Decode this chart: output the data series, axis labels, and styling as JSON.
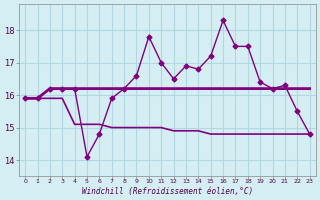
{
  "xlabel": "Windchill (Refroidissement éolien,°C)",
  "background_color": "#d4eef4",
  "line_color": "#800080",
  "grid_color": "#b0d8e0",
  "x": [
    0,
    1,
    2,
    3,
    4,
    5,
    6,
    7,
    8,
    9,
    10,
    11,
    12,
    13,
    14,
    15,
    16,
    17,
    18,
    19,
    20,
    21,
    22,
    23
  ],
  "y_main": [
    15.9,
    15.9,
    16.2,
    16.2,
    16.2,
    14.1,
    14.8,
    15.9,
    16.2,
    16.6,
    17.8,
    17.0,
    16.5,
    16.9,
    16.8,
    17.2,
    18.3,
    17.5,
    17.5,
    16.4,
    16.2,
    16.3,
    15.5,
    14.8
  ],
  "y_upper": [
    15.9,
    15.9,
    16.2,
    16.2,
    16.2,
    16.2,
    16.2,
    16.2,
    16.2,
    16.2,
    16.2,
    16.2,
    16.2,
    16.2,
    16.2,
    16.2,
    16.2,
    16.2,
    16.2,
    16.2,
    16.2,
    16.2,
    16.2,
    16.2
  ],
  "y_lower": [
    15.9,
    15.9,
    15.9,
    15.9,
    15.1,
    15.1,
    15.1,
    15.0,
    15.0,
    15.0,
    15.0,
    15.0,
    14.9,
    14.9,
    14.9,
    14.8,
    14.8,
    14.8,
    14.8,
    14.8,
    14.8,
    14.8,
    14.8,
    14.8
  ],
  "ylim": [
    13.5,
    18.8
  ],
  "yticks": [
    14,
    15,
    16,
    17,
    18
  ],
  "xlim": [
    -0.5,
    23.5
  ],
  "tick_color": "#500050"
}
